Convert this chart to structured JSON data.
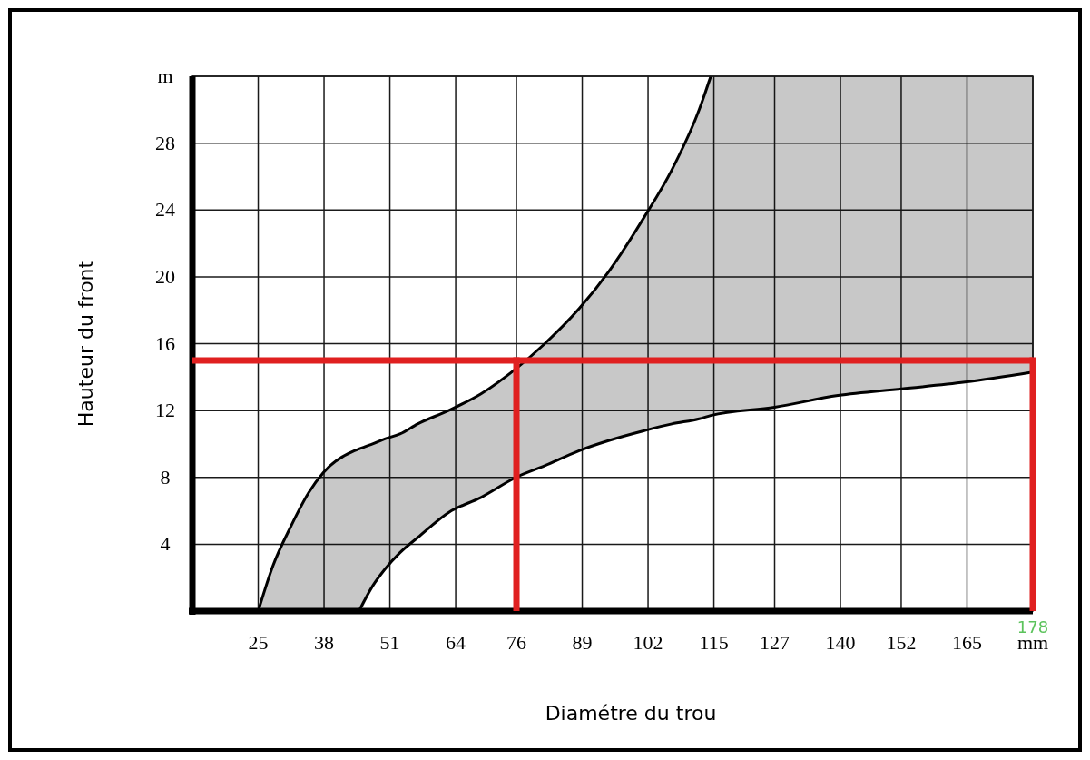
{
  "chart_data": {
    "type": "line",
    "xlabel": "Diamétre du trou",
    "ylabel": "Hauteur du front",
    "xlim": [
      12,
      178
    ],
    "xticks": [
      25,
      38,
      51,
      64,
      76,
      89,
      102,
      115,
      127,
      140,
      152,
      165,
      {
        "value": 178,
        "label": "mm"
      }
    ],
    "ylim": [
      0,
      32
    ],
    "yticks": [
      {
        "value": 0,
        "label": null
      },
      4,
      8,
      12,
      16,
      20,
      24,
      28,
      {
        "value": 32,
        "label": "m"
      }
    ],
    "grid": true,
    "annotations": [
      {
        "text": "178",
        "x": 178,
        "y": 0
      }
    ],
    "series": [
      {
        "color": "#000000",
        "x": [
          25,
          27.9,
          31.5,
          35,
          37.9,
          44,
          44.9,
          47.6,
          50,
          53,
          56.5,
          62.6,
          69,
          75.9,
          81.6,
          88.4,
          94.2,
          101.3,
          106.7,
          112.1,
          114.4,
          127,
          139.5,
          152.1,
          164.6,
          178
        ],
        "values": [
          0,
          2.7,
          5.1,
          7.1,
          8.3,
          9.6,
          9.7,
          10.0,
          10.3,
          10.6,
          11.2,
          12.0,
          13.0,
          14.5,
          16.0,
          18.1,
          20.3,
          23.6,
          26.4,
          30.0,
          32,
          null,
          null,
          null,
          null,
          null
        ],
        "upper": [
          0,
          2.7,
          5.1,
          7.1,
          8.3,
          9.6,
          9.7,
          10.0,
          10.3,
          10.6,
          11.2,
          12.0,
          13.0,
          14.5,
          16.0,
          18.1,
          20.3,
          23.6,
          26.4,
          30.0,
          32,
          32,
          32,
          32,
          32,
          32
        ],
        "lower": [
          0,
          0,
          0,
          0,
          0,
          0,
          0,
          1.5,
          2.5,
          3.5,
          4.4,
          5.9,
          6.8,
          8.0,
          8.7,
          9.6,
          10.2,
          10.8,
          11.2,
          11.5,
          11.7,
          12.2,
          12.9,
          13.3,
          13.7,
          14.3
        ]
      },
      {
        "type": "line",
        "color": "#000000",
        "x": [
          44.9,
          47.6,
          50,
          53,
          56.5,
          62.6,
          69,
          75.9,
          81.6,
          88.4,
          94.2,
          101.3,
          106.7,
          112.1,
          114.4,
          127,
          139.5,
          152.1,
          164.6,
          178
        ],
        "values": [
          0,
          1.5,
          2.5,
          3.5,
          4.4,
          5.9,
          6.8,
          8.0,
          8.7,
          9.6,
          10.2,
          10.8,
          11.2,
          11.5,
          11.7,
          12.2,
          12.9,
          13.3,
          13.7,
          14.3
        ]
      }
    ],
    "ref_lines": [
      {
        "axis": "y",
        "value": 15,
        "color": "#e02020"
      },
      {
        "axis": "x",
        "value": 76,
        "color": "#e02020"
      },
      {
        "axis": "x",
        "value": 178,
        "color": "#e02020"
      }
    ]
  }
}
